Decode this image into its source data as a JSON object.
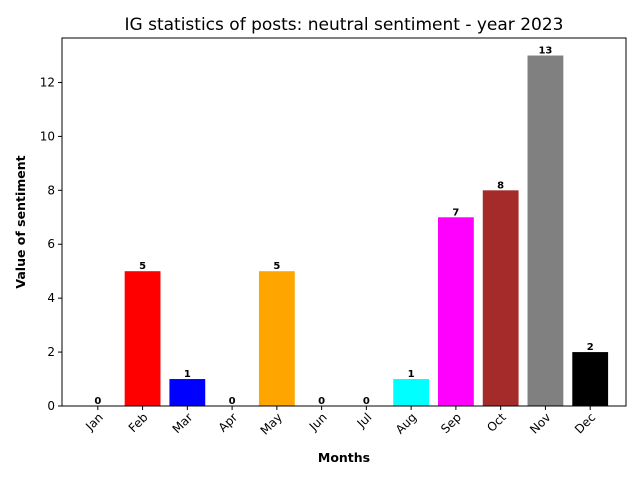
{
  "chart_data": {
    "type": "bar",
    "title": "IG statistics of posts: neutral sentiment - year 2023",
    "xlabel": "Months",
    "ylabel": "Value of sentiment",
    "categories": [
      "Jan",
      "Feb",
      "Mar",
      "Apr",
      "May",
      "Jun",
      "Jul",
      "Aug",
      "Sep",
      "Oct",
      "Nov",
      "Dec"
    ],
    "values": [
      0,
      5,
      1,
      0,
      5,
      0,
      0,
      1,
      7,
      8,
      13,
      2
    ],
    "colors": [
      "#1f77b4",
      "#ff0000",
      "#0000ff",
      "#008000",
      "#ffa500",
      "#800080",
      "#ffff00",
      "#00ffff",
      "#ff00ff",
      "#a52a2a",
      "#808080",
      "#000000"
    ],
    "ylim": [
      0,
      13.65
    ],
    "yticks": [
      0,
      2,
      4,
      6,
      8,
      10,
      12
    ],
    "grid": false,
    "show_value_labels": true
  }
}
